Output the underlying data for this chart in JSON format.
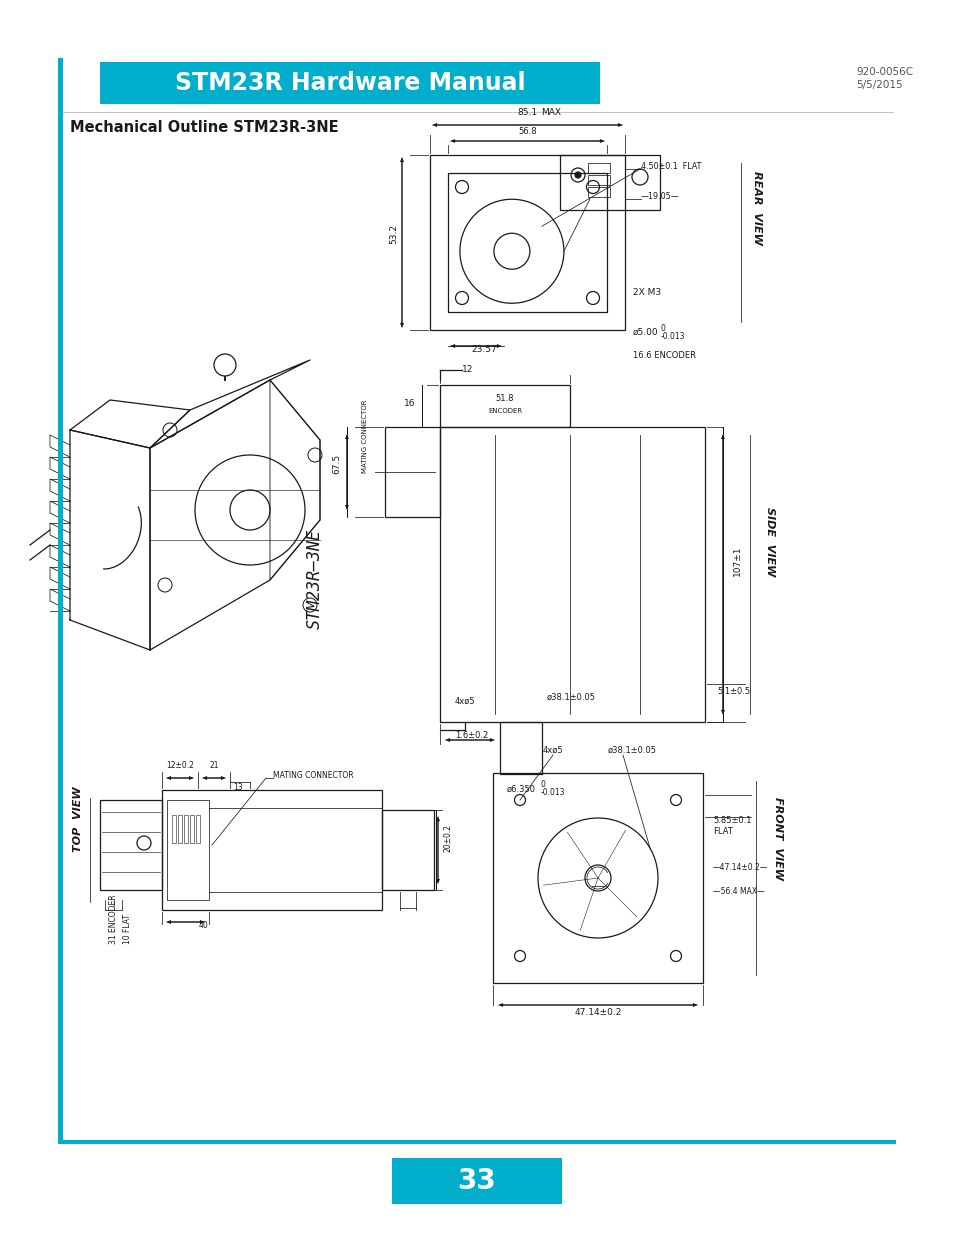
{
  "title": "STM23R Hardware Manual",
  "title_bg": "#00AECC",
  "title_color": "#FFFFFF",
  "doc_number": "920-0056C",
  "doc_date": "5/5/2015",
  "section_title": "Mechanical Outline STM23R-3NE",
  "page_number": "33",
  "page_bg": "#00AECC",
  "page_color": "#FFFFFF",
  "border_color": "#00AECC",
  "line_color": "#1a1a1a",
  "bg_color": "#FFFFFF",
  "gray_line": "#999999"
}
